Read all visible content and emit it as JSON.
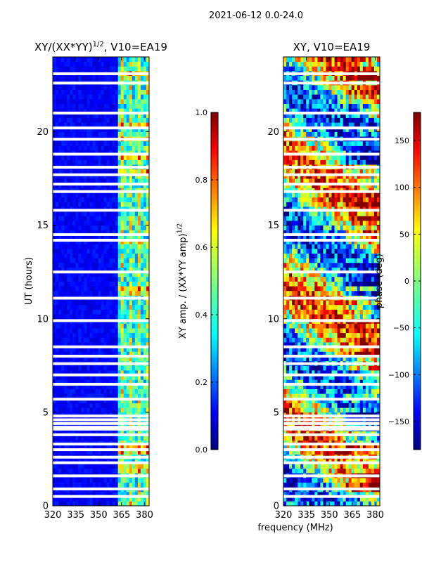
{
  "figure_title": "2021-06-12 0.0-24.0",
  "chart_data": [
    {
      "type": "heatmap",
      "title": "XY/(XX*YY)^1/2, V10=EA19",
      "title_main": "XY/(XX*YY)",
      "title_exp": "1/2",
      "title_tail": ", V10=EA19",
      "xlabel": "",
      "ylabel": "UT (hours)",
      "xlim": [
        320,
        383
      ],
      "ylim": [
        0,
        24
      ],
      "xticks": [
        320,
        335,
        350,
        365,
        380
      ],
      "yticks": [
        0,
        5,
        10,
        15,
        20
      ],
      "colorbar": {
        "label_main": "XY amp. / (XX*YY amp)",
        "label_exp": "1/2",
        "range": [
          0.0,
          1.0
        ],
        "ticks": [
          "0.0",
          "0.2",
          "0.4",
          "0.6",
          "0.8",
          "1.0"
        ],
        "tick_values": [
          0.0,
          0.2,
          0.4,
          0.6,
          0.8,
          1.0
        ]
      },
      "flagged_hours": [
        0.5,
        0.9,
        1.6,
        2.3,
        2.6,
        3.0,
        3.3,
        3.8,
        4.1,
        4.2,
        4.4,
        4.6,
        4.8,
        5.7,
        6.5,
        7.0,
        7.6,
        8.0,
        8.5,
        9.9,
        11.1,
        12.5,
        14.2,
        14.5,
        15.8,
        16.8,
        17.2,
        17.7,
        18.1,
        18.8,
        19.6,
        20.2,
        21.0,
        22.6,
        23.1
      ]
    },
    {
      "type": "heatmap",
      "title": "XY, V10=EA19",
      "xlabel": "frequency (MHz)",
      "ylabel": "",
      "xlim": [
        320,
        383
      ],
      "ylim": [
        0,
        24
      ],
      "xticks": [
        320,
        335,
        350,
        365,
        380
      ],
      "yticks": [
        0,
        5,
        10,
        15,
        20
      ],
      "colorbar": {
        "label": "phase (deg)",
        "range": [
          -180,
          180
        ],
        "ticks": [
          "−150",
          "−100",
          "−50",
          "0",
          "50",
          "100",
          "150"
        ],
        "tick_values": [
          -150,
          -100,
          -50,
          0,
          50,
          100,
          150
        ]
      },
      "flagged_hours": [
        0.5,
        0.9,
        1.6,
        2.3,
        2.6,
        3.0,
        3.3,
        3.8,
        4.1,
        4.2,
        4.4,
        4.6,
        4.8,
        5.7,
        6.5,
        7.0,
        7.6,
        8.0,
        8.5,
        9.9,
        11.1,
        12.5,
        14.2,
        14.5,
        15.8,
        16.8,
        17.2,
        17.7,
        18.1,
        18.8,
        19.6,
        20.2,
        21.0,
        22.6,
        23.1
      ]
    }
  ],
  "colors": {
    "jet": [
      "#00007f",
      "#0000ff",
      "#007fff",
      "#00ffff",
      "#7fff7f",
      "#ffff00",
      "#ff7f00",
      "#ff0000",
      "#7f0000"
    ]
  }
}
